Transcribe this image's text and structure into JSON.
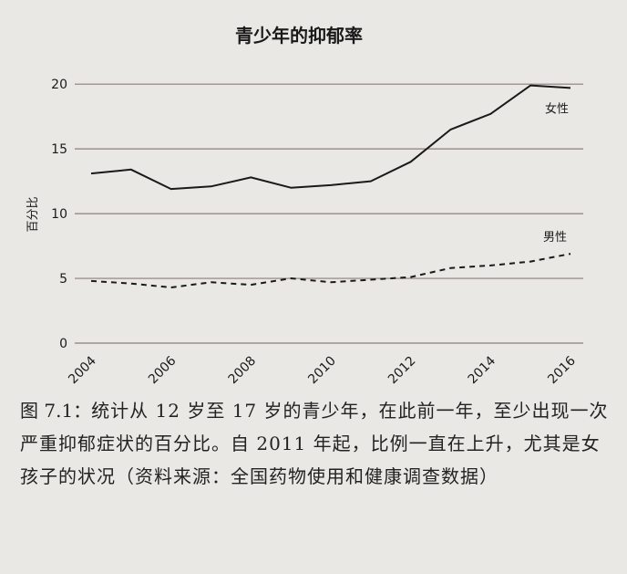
{
  "chart_data": {
    "type": "line",
    "title": "青少年的抑郁率",
    "ylabel": "百分比",
    "xlabel": "",
    "ylim": [
      0,
      21
    ],
    "yticks": [
      0,
      5,
      10,
      15,
      20
    ],
    "xlim": [
      2003.5,
      2016.5
    ],
    "xticks": [
      2004,
      2006,
      2008,
      2010,
      2012,
      2014,
      2016
    ],
    "grid": "horizontal",
    "x": [
      2004,
      2005,
      2006,
      2007,
      2008,
      2009,
      2010,
      2011,
      2012,
      2013,
      2014,
      2015,
      2016
    ],
    "series": [
      {
        "name": "女性",
        "style": "solid",
        "values": [
          13.1,
          13.4,
          11.9,
          12.1,
          12.8,
          12.0,
          12.2,
          12.5,
          14.0,
          16.5,
          17.7,
          19.9,
          19.7
        ]
      },
      {
        "name": "男性",
        "style": "dashed",
        "values": [
          4.8,
          4.6,
          4.3,
          4.7,
          4.5,
          5.0,
          4.7,
          4.9,
          5.1,
          5.8,
          6.0,
          6.3,
          6.9
        ]
      }
    ],
    "colors": {
      "line": "#1a1a1a",
      "grid": "#8a7f7c"
    }
  },
  "caption": {
    "figure_label": "图 7.1：",
    "text": "统计从 12 岁至 17 岁的青少年，在此前一年，至少出现一次严重抑郁症状的百分比。自 2011 年起，比例一直在上升，尤其是女孩子的状况（资料来源：全国药物使用和健康调查数据）"
  }
}
